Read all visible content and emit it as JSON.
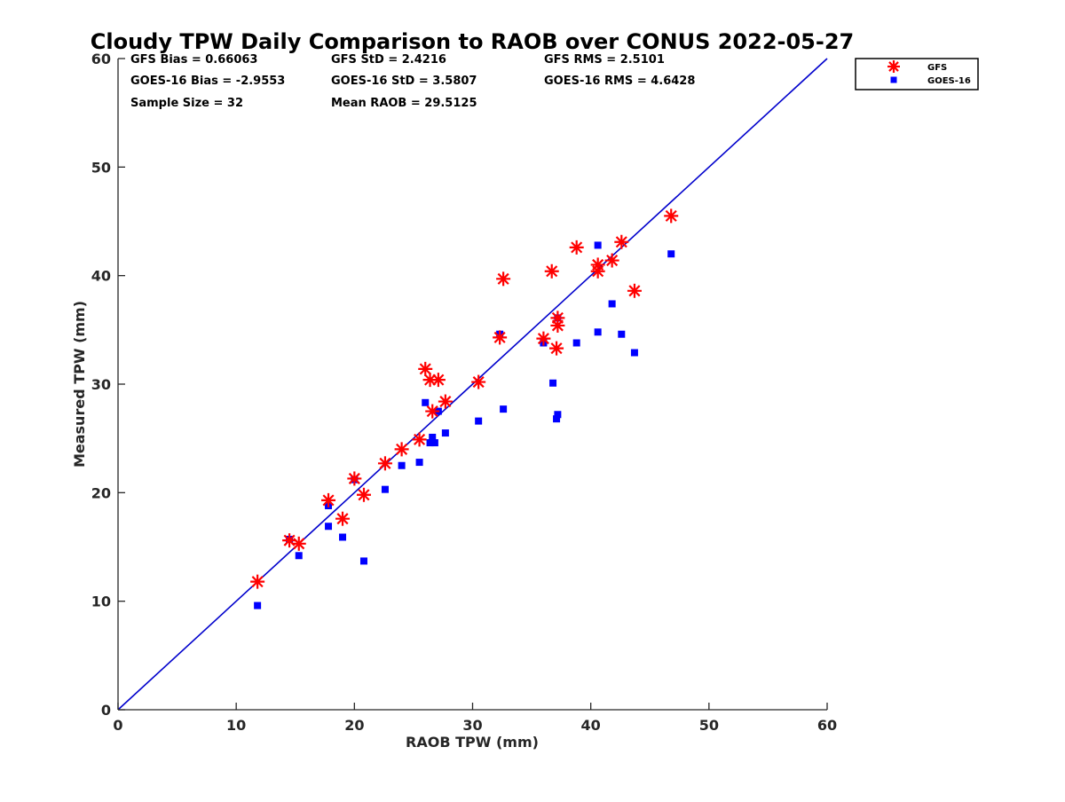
{
  "chart_data": {
    "type": "scatter",
    "title": "Cloudy TPW Daily Comparison to RAOB over CONUS 2022-05-27",
    "xlabel": "RAOB TPW (mm)",
    "ylabel": "Measured TPW (mm)",
    "xlim": [
      0,
      60
    ],
    "ylim": [
      0,
      60
    ],
    "xticks": [
      0,
      10,
      20,
      30,
      40,
      50,
      60
    ],
    "yticks": [
      0,
      10,
      20,
      30,
      40,
      50,
      60
    ],
    "grid": false,
    "legend_position": "top-right",
    "reference_line": {
      "x": [
        0,
        60
      ],
      "y": [
        0,
        60
      ],
      "color": "#0000cc"
    },
    "stats": [
      "GFS Bias = 0.66063",
      "GFS StD = 2.4216",
      "GFS RMS = 2.5101",
      "GOES-16 Bias = -2.9553",
      "GOES-16 StD = 3.5807",
      "GOES-16 RMS = 4.6428",
      "Sample Size = 32",
      "Mean RAOB = 29.5125"
    ],
    "series": [
      {
        "name": "GFS",
        "marker": "asterisk",
        "color": "#ff0000",
        "points": [
          [
            11.8,
            11.8
          ],
          [
            14.5,
            15.6
          ],
          [
            15.3,
            15.3
          ],
          [
            17.8,
            19.3
          ],
          [
            19.0,
            17.6
          ],
          [
            20.0,
            21.3
          ],
          [
            20.8,
            19.8
          ],
          [
            22.6,
            22.7
          ],
          [
            24.0,
            24.0
          ],
          [
            25.5,
            24.9
          ],
          [
            26.0,
            31.4
          ],
          [
            26.4,
            30.4
          ],
          [
            26.6,
            27.5
          ],
          [
            27.1,
            30.4
          ],
          [
            27.7,
            28.4
          ],
          [
            30.5,
            30.2
          ],
          [
            32.3,
            34.3
          ],
          [
            32.6,
            39.7
          ],
          [
            36.0,
            34.2
          ],
          [
            36.7,
            40.4
          ],
          [
            37.1,
            33.3
          ],
          [
            37.2,
            35.4
          ],
          [
            37.2,
            36.1
          ],
          [
            38.8,
            42.6
          ],
          [
            40.6,
            41.0
          ],
          [
            40.6,
            40.4
          ],
          [
            41.8,
            41.4
          ],
          [
            42.6,
            43.1
          ],
          [
            43.7,
            38.6
          ],
          [
            46.8,
            45.5
          ]
        ]
      },
      {
        "name": "GOES-16",
        "marker": "square",
        "color": "#0000ff",
        "points": [
          [
            11.8,
            9.6
          ],
          [
            14.5,
            15.7
          ],
          [
            15.3,
            14.2
          ],
          [
            17.8,
            18.8
          ],
          [
            17.8,
            16.9
          ],
          [
            19.0,
            15.9
          ],
          [
            20.0,
            21.2
          ],
          [
            20.8,
            13.7
          ],
          [
            22.6,
            20.3
          ],
          [
            24.0,
            22.5
          ],
          [
            25.5,
            22.8
          ],
          [
            26.0,
            28.3
          ],
          [
            26.4,
            24.6
          ],
          [
            26.6,
            25.1
          ],
          [
            26.8,
            24.6
          ],
          [
            27.1,
            27.5
          ],
          [
            27.7,
            25.5
          ],
          [
            30.5,
            26.6
          ],
          [
            32.3,
            34.6
          ],
          [
            32.6,
            27.7
          ],
          [
            36.0,
            33.8
          ],
          [
            36.8,
            30.1
          ],
          [
            37.1,
            26.8
          ],
          [
            37.2,
            27.2
          ],
          [
            37.2,
            36.1
          ],
          [
            38.8,
            33.8
          ],
          [
            40.6,
            42.8
          ],
          [
            40.6,
            34.8
          ],
          [
            41.8,
            37.4
          ],
          [
            42.6,
            34.6
          ],
          [
            43.7,
            32.9
          ],
          [
            46.8,
            42.0
          ]
        ]
      }
    ]
  }
}
